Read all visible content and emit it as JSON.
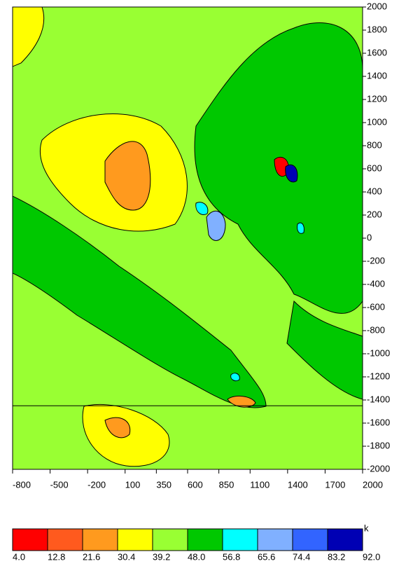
{
  "chart_data": {
    "type": "contour",
    "xlim": [
      -800,
      2000
    ],
    "xticks": [
      -800,
      -500,
      -200,
      100,
      350,
      600,
      850,
      1100,
      1400,
      1700,
      2000
    ],
    "ylim": [
      -2000,
      2000
    ],
    "yticks": [
      2000,
      1800,
      1600,
      1400,
      1200,
      1000,
      800,
      600,
      400,
      200,
      0,
      -200,
      -400,
      -600,
      -800,
      -1000,
      -1200,
      -1400,
      -1600,
      -1800,
      -2000
    ],
    "hline": -1450,
    "colorbar": {
      "unit": "k",
      "levels": [
        {
          "value": 4,
          "label": "4.0"
        },
        12.8,
        21.6,
        30.4,
        39.2,
        {
          "value": 48,
          "label": "48.0"
        },
        56.8,
        65.6,
        74.4,
        83.2,
        {
          "value": 92,
          "label": "92.0"
        }
      ],
      "colors": [
        "#ff0000",
        "#ff5a1e",
        "#ff9a1e",
        "#ffff00",
        "#99ff33",
        "#00c800",
        "#00ffff",
        "#80b0ff",
        "#3264ff",
        "#0000b4"
      ]
    }
  }
}
